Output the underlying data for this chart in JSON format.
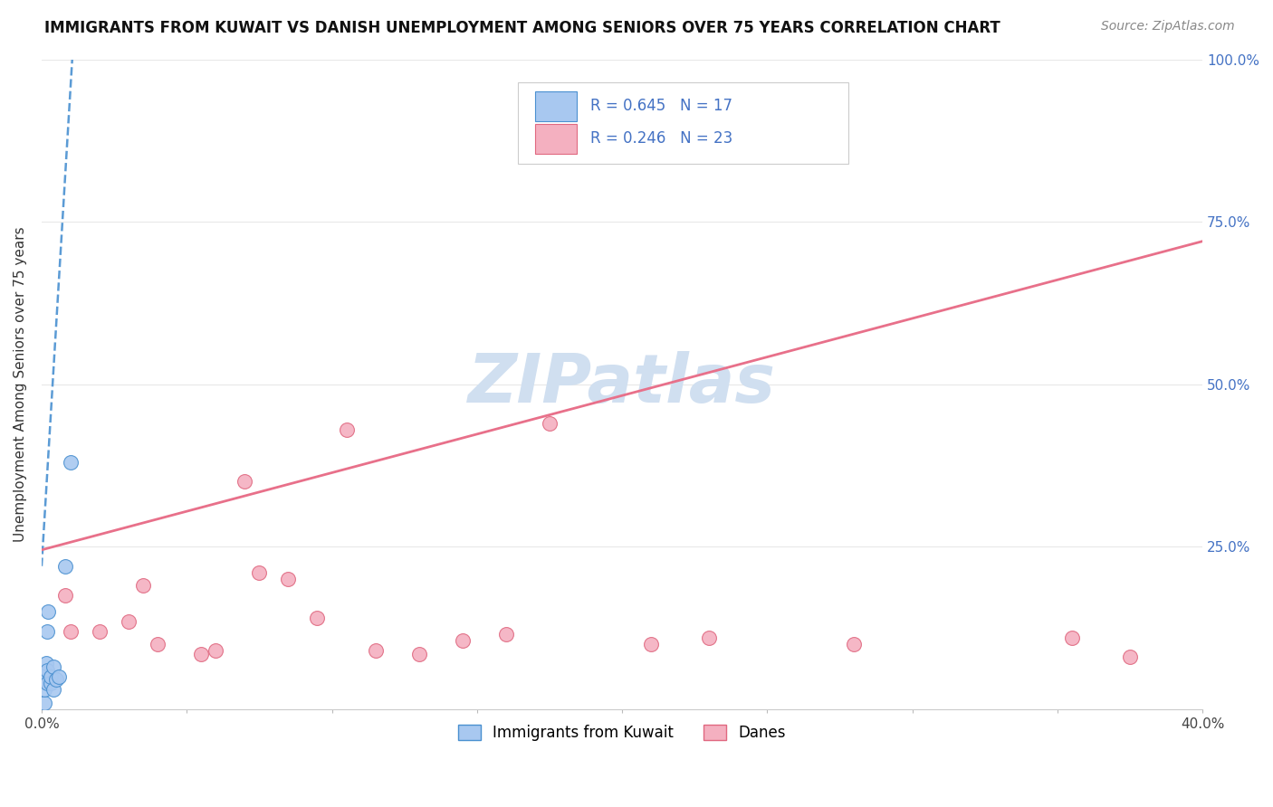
{
  "title": "IMMIGRANTS FROM KUWAIT VS DANISH UNEMPLOYMENT AMONG SENIORS OVER 75 YEARS CORRELATION CHART",
  "source": "Source: ZipAtlas.com",
  "ylabel": "Unemployment Among Seniors over 75 years",
  "xlim": [
    0.0,
    0.4
  ],
  "ylim": [
    0.0,
    1.0
  ],
  "ytick_positions": [
    0.0,
    0.25,
    0.5,
    0.75,
    1.0
  ],
  "ytick_labels": [
    "",
    "25.0%",
    "50.0%",
    "75.0%",
    "100.0%"
  ],
  "xtick_positions": [
    0.0,
    0.05,
    0.1,
    0.15,
    0.2,
    0.25,
    0.3,
    0.35,
    0.4
  ],
  "xtick_labels": [
    "0.0%",
    "",
    "",
    "",
    "",
    "",
    "",
    "",
    "40.0%"
  ],
  "blue_R": 0.645,
  "blue_N": 17,
  "pink_R": 0.246,
  "pink_N": 23,
  "blue_color": "#a8c8f0",
  "blue_edge_color": "#4a90d0",
  "pink_color": "#f4b0c0",
  "pink_edge_color": "#e06880",
  "blue_line_color": "#5b9bd5",
  "pink_line_color": "#e8708a",
  "watermark": "ZIPatlas",
  "watermark_color": "#d0dff0",
  "legend_text_color": "#4472c4",
  "blue_x": [
    0.0008,
    0.001,
    0.0012,
    0.0014,
    0.0016,
    0.0018,
    0.002,
    0.002,
    0.0022,
    0.003,
    0.003,
    0.004,
    0.004,
    0.005,
    0.006,
    0.008,
    0.01
  ],
  "blue_y": [
    0.01,
    0.03,
    0.045,
    0.055,
    0.07,
    0.04,
    0.06,
    0.12,
    0.15,
    0.04,
    0.05,
    0.03,
    0.065,
    0.045,
    0.05,
    0.22,
    0.38
  ],
  "pink_x": [
    0.008,
    0.01,
    0.02,
    0.03,
    0.035,
    0.04,
    0.055,
    0.06,
    0.07,
    0.075,
    0.085,
    0.095,
    0.105,
    0.115,
    0.13,
    0.145,
    0.16,
    0.175,
    0.21,
    0.23,
    0.28,
    0.355,
    0.375
  ],
  "pink_y": [
    0.175,
    0.12,
    0.12,
    0.135,
    0.19,
    0.1,
    0.085,
    0.09,
    0.35,
    0.21,
    0.2,
    0.14,
    0.43,
    0.09,
    0.085,
    0.105,
    0.115,
    0.44,
    0.1,
    0.11,
    0.1,
    0.11,
    0.08
  ],
  "blue_line_x0": 0.0,
  "blue_line_y0": 0.22,
  "blue_line_x1": 0.01,
  "blue_line_y1": 0.96,
  "pink_line_x0": 0.0,
  "pink_line_y0": 0.245,
  "pink_line_x1": 0.4,
  "pink_line_y1": 0.72
}
